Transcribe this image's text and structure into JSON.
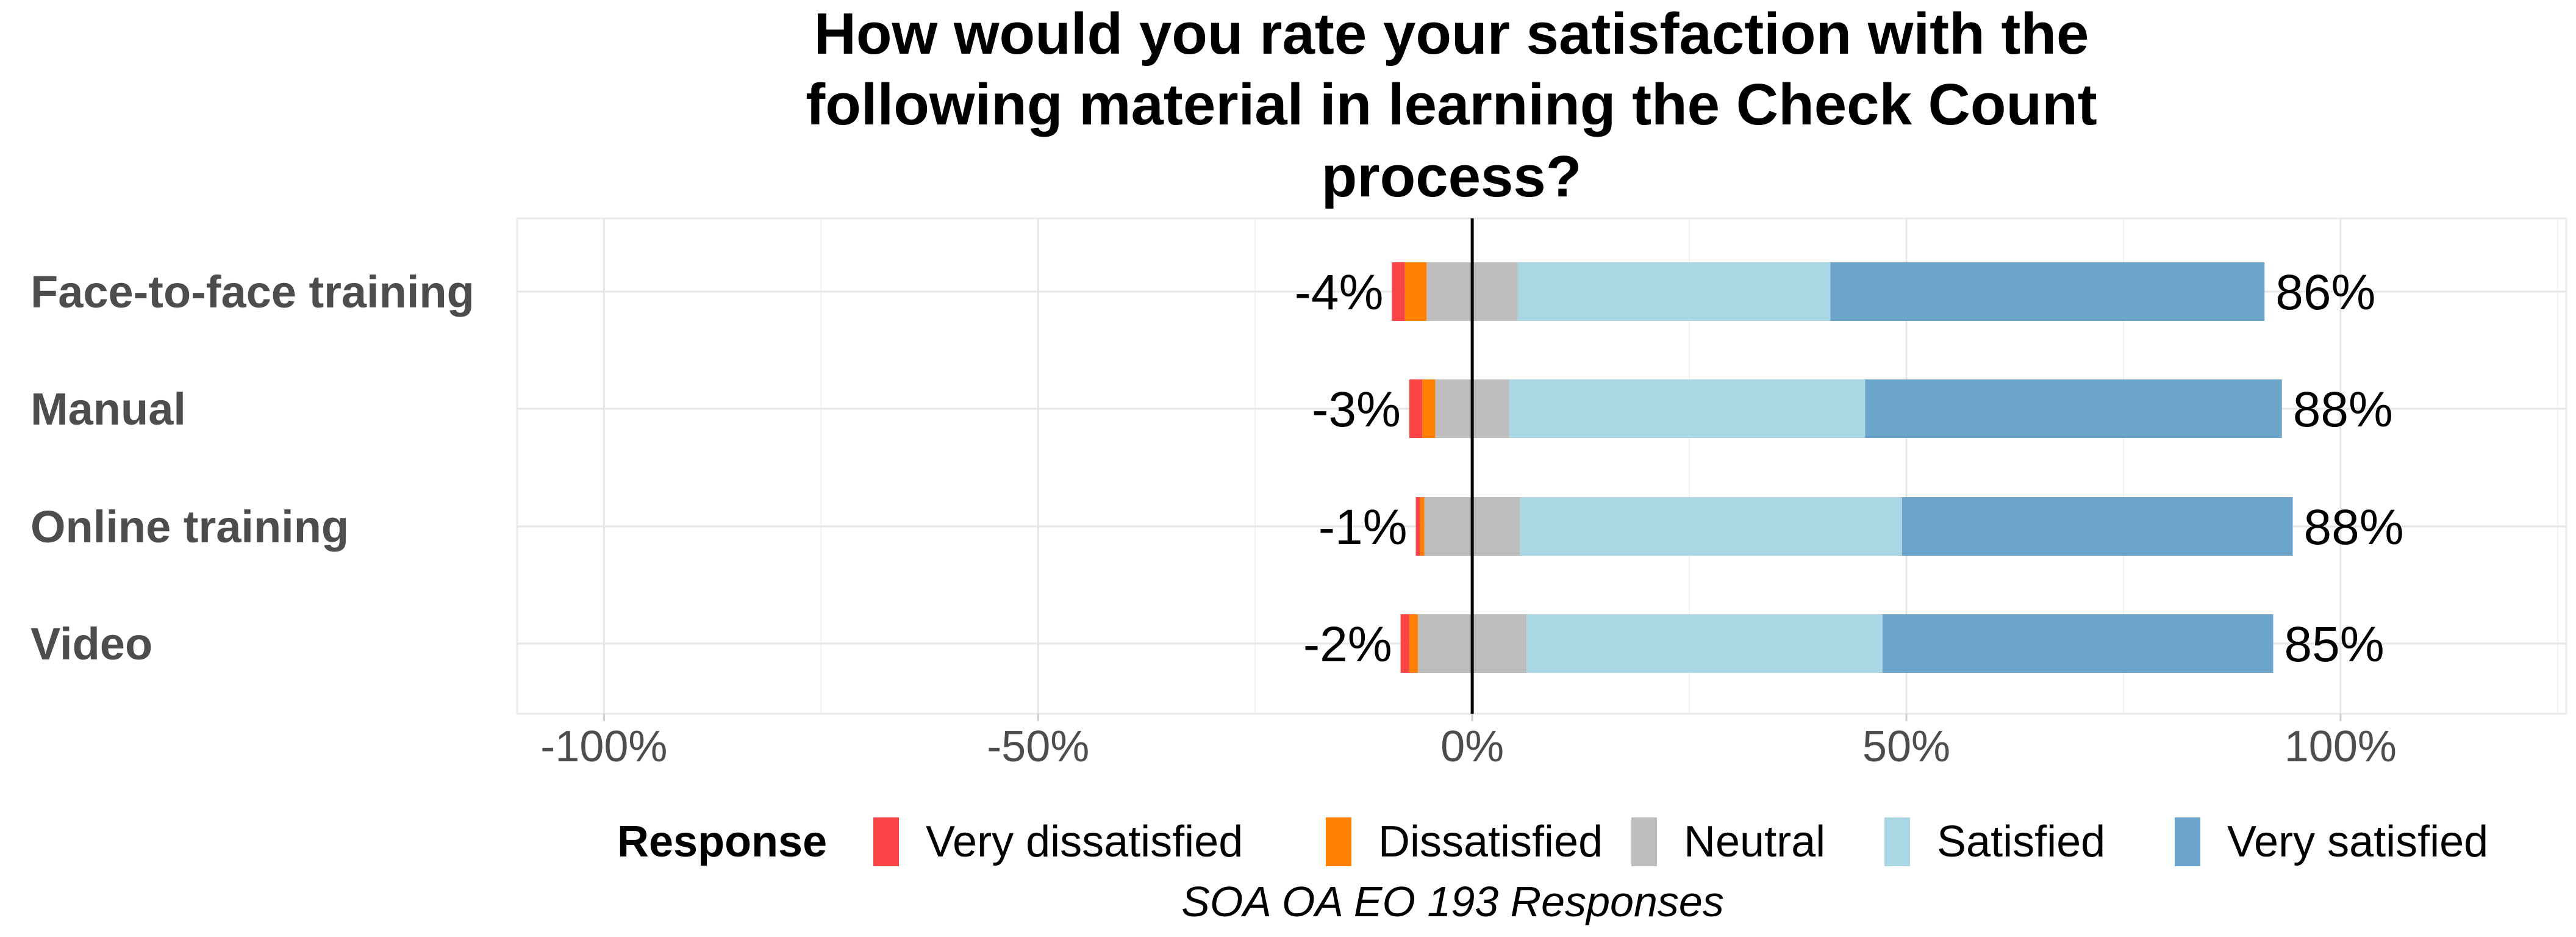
{
  "chart_data": {
    "type": "bar",
    "orientation": "horizontal",
    "stacked": "diverging",
    "title": "How would you rate your satisfaction with the following material in learning the Check Count process?",
    "title_lines": [
      "How would you rate your satisfaction with the",
      "following material in learning the Check Count",
      "process?"
    ],
    "categories": [
      "Face-to-face training",
      "Manual",
      "Online training",
      "Video"
    ],
    "xlim": [
      -110,
      126
    ],
    "x_ticks": [
      -100,
      -50,
      0,
      50,
      100
    ],
    "x_tick_labels": [
      "-100%",
      "-50%",
      "0%",
      "50%",
      "100%"
    ],
    "grid": true,
    "legend_title": "Response",
    "legend_position": "bottom",
    "caption": "SOA OA EO 193 Responses",
    "series": [
      {
        "name": "Very dissatisfied",
        "color": "#fb4446",
        "values": [
          1.5,
          1.5,
          0.5,
          1.0
        ]
      },
      {
        "name": "Dissatisfied",
        "color": "#fe8005",
        "values": [
          2.5,
          1.5,
          0.5,
          1.0
        ]
      },
      {
        "name": "Neutral",
        "color": "#bdbdbd",
        "values": [
          10.5,
          8.5,
          11.0,
          12.5
        ]
      },
      {
        "name": "Satisfied",
        "color": "#abd7e5",
        "values": [
          36.0,
          41.0,
          44.0,
          41.0
        ]
      },
      {
        "name": "Very satisfied",
        "color": "#6ba5cc",
        "values": [
          50.0,
          48.0,
          45.0,
          45.0
        ]
      }
    ],
    "negative_labels": [
      "-4%",
      "-3%",
      "-1%",
      "-2%"
    ],
    "positive_labels": [
      "86%",
      "88%",
      "88%",
      "85%"
    ]
  }
}
